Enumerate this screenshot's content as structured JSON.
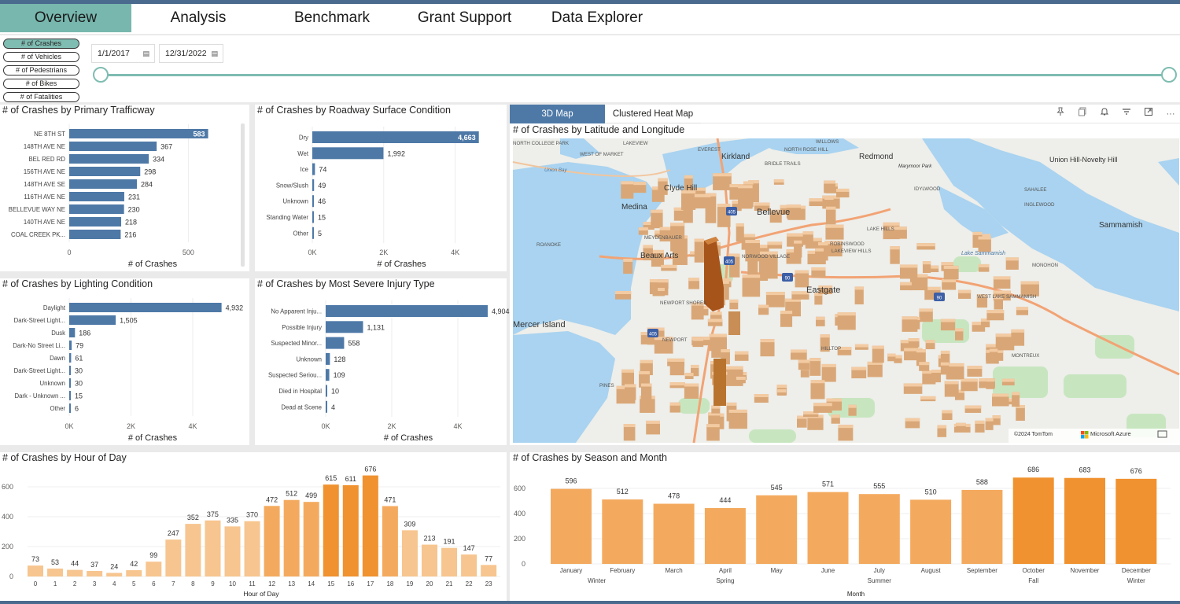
{
  "nav": {
    "tabs": [
      {
        "label": "Overview"
      },
      {
        "label": "Analysis"
      },
      {
        "label": "Benchmark"
      },
      {
        "label": "Grant Support"
      },
      {
        "label": "Data Explorer"
      }
    ]
  },
  "filters": {
    "metric_buttons": [
      "# of Crashes",
      "# of Vehicles",
      "# of Pedestrians",
      "# of Bikes",
      "# of Fatalities"
    ],
    "date_start": "1/1/2017",
    "date_end": "12/31/2022"
  },
  "colors": {
    "accent": "#77b7ae",
    "bar_blue": "#4e79a7",
    "orange_dark": "#f0922f",
    "orange_mid": "#f4aa5e",
    "orange_light": "#f7c58f"
  },
  "map": {
    "tabs": [
      "3D Map",
      "Clustered Heat Map"
    ],
    "title": "# of Crashes by Latitude and Longitude",
    "toolbar_icons": [
      "pin-icon",
      "copy-icon",
      "bell-icon",
      "filter-icon",
      "focus-icon",
      "more-icon"
    ],
    "labels": {
      "north_college_park": "NORTH COLLEGE PARK",
      "lakeview": "LAKEVIEW",
      "willows": "WILLOWS",
      "north_rose_hill": "NORTH ROSE HILL",
      "everest": "EVEREST",
      "redmond": "Redmond",
      "marymoor": "Marymoor Park",
      "union_hill": "Union Hill-Novelty Hill",
      "west_of_market": "WEST OF MARKET",
      "kirkland": "Kirkland",
      "idylwood": "IDYLWOOD",
      "lakeview_hills": "LAKEVIEW HILLS",
      "bridle_trails": "BRIDLE TRAILS",
      "union_bay": "Union Bay",
      "clyde_hill": "Clyde Hill",
      "bellevue": "Bellevue",
      "medina": "Medina",
      "sahalee": "SAHALEE",
      "inglewood": "INGLEWOOD",
      "meydenbauer": "MEYDENBAUER",
      "lake_hills": "LAKE HILLS",
      "sammamish": "Sammamish",
      "roanoke": "ROANOKE",
      "beaux_arts": "Beaux Arts",
      "norwood_village": "NORWOOD VILLAGE",
      "robinswood": "ROBINSWOOD",
      "lake_sammamish": "Lake Sammamish",
      "monohon": "MONOHON",
      "newport_shores": "NEWPORT SHORES",
      "eastgate": "Eastgate",
      "west_lake_sammamish": "WEST LAKE SAMMAMISH",
      "mercer_island": "Mercer Island",
      "newport": "NEWPORT",
      "hilltop": "HILLTOP",
      "montreux": "MONTREUX",
      "pines": "PINES",
      "highway_405": "405",
      "highway_90": "90",
      "copyright": "©2024 TomTom",
      "provider": "Microsoft Azure"
    }
  },
  "charts": {
    "trafficway": {
      "title": "# of Crashes by Primary Trafficway",
      "xlabel": "# of Crashes",
      "ticks": [
        "0",
        "500"
      ]
    },
    "surface": {
      "title": "# of Crashes by Roadway Surface Condition",
      "xlabel": "# of Crashes",
      "ticks": [
        "0K",
        "2K",
        "4K"
      ]
    },
    "lighting": {
      "title": "# of Crashes by Lighting Condition",
      "xlabel": "# of Crashes",
      "ticks": [
        "0K",
        "2K",
        "4K"
      ]
    },
    "injury": {
      "title": "# of Crashes by Most Severe Injury Type",
      "xlabel": "# of Crashes",
      "ticks": [
        "0K",
        "2K",
        "4K"
      ]
    },
    "hour": {
      "title": "# of Crashes by Hour of Day",
      "xlabel": "Hour of Day",
      "yticks": [
        "0",
        "200",
        "400",
        "600"
      ]
    },
    "season": {
      "title": "# of Crashes by Season and Month",
      "xlabel": "Month",
      "yticks": [
        "0",
        "200",
        "400",
        "600"
      ]
    }
  },
  "chart_data": [
    {
      "type": "bar",
      "orientation": "horizontal",
      "title": "# of Crashes by Primary Trafficway",
      "xlabel": "# of Crashes",
      "categories": [
        "NE 8TH ST",
        "148TH AVE NE",
        "BEL RED RD",
        "156TH AVE NE",
        "148TH AVE SE",
        "116TH AVE NE",
        "BELLEVUE WAY NE",
        "140TH AVE NE",
        "COAL CREEK PK..."
      ],
      "values": [
        583,
        367,
        334,
        298,
        284,
        231,
        230,
        218,
        216
      ],
      "xlim": [
        0,
        700
      ]
    },
    {
      "type": "bar",
      "orientation": "horizontal",
      "title": "# of Crashes by Roadway Surface Condition",
      "xlabel": "# of Crashes",
      "categories": [
        "Dry",
        "Wet",
        "Ice",
        "Snow/Slush",
        "Unknown",
        "Standing Water",
        "Other"
      ],
      "values": [
        4663,
        1992,
        74,
        49,
        46,
        15,
        5
      ],
      "labels": [
        "4,663",
        "1,992",
        "74",
        "49",
        "46",
        "15",
        "5"
      ],
      "xlim": [
        0,
        5000
      ]
    },
    {
      "type": "bar",
      "orientation": "horizontal",
      "title": "# of Crashes by Lighting Condition",
      "xlabel": "# of Crashes",
      "categories": [
        "Daylight",
        "Dark-Street Light...",
        "Dusk",
        "Dark-No Street Li...",
        "Dawn",
        "Dark-Street Light...",
        "Unknown",
        "Dark - Unknown ...",
        "Other"
      ],
      "values": [
        4932,
        1505,
        186,
        79,
        61,
        30,
        30,
        15,
        6
      ],
      "labels": [
        "4,932",
        "1,505",
        "186",
        "79",
        "61",
        "30",
        "30",
        "15",
        "6"
      ],
      "xlim": [
        0,
        5400
      ]
    },
    {
      "type": "bar",
      "orientation": "horizontal",
      "title": "# of Crashes by Most Severe Injury Type",
      "xlabel": "# of Crashes",
      "categories": [
        "No Apparent Inju...",
        "Possible Injury",
        "Suspected Minor...",
        "Unknown",
        "Suspected Seriou...",
        "Died in Hospital",
        "Dead at Scene"
      ],
      "values": [
        4904,
        1131,
        558,
        128,
        109,
        10,
        4
      ],
      "labels": [
        "4,904",
        "1,131",
        "558",
        "128",
        "109",
        "10",
        "4"
      ],
      "xlim": [
        0,
        5000
      ]
    },
    {
      "type": "bar",
      "title": "# of Crashes by Hour of Day",
      "xlabel": "Hour of Day",
      "categories": [
        "0",
        "1",
        "2",
        "3",
        "4",
        "5",
        "6",
        "7",
        "8",
        "9",
        "10",
        "11",
        "12",
        "13",
        "14",
        "15",
        "16",
        "17",
        "18",
        "19",
        "20",
        "21",
        "22",
        "23"
      ],
      "values": [
        73,
        53,
        44,
        37,
        24,
        42,
        99,
        247,
        352,
        375,
        335,
        370,
        472,
        512,
        499,
        615,
        611,
        676,
        471,
        309,
        213,
        191,
        147,
        77
      ],
      "ylim": [
        0,
        700
      ]
    },
    {
      "type": "bar",
      "title": "# of Crashes by Season and Month",
      "xlabel": "Month",
      "categories": [
        "January",
        "February",
        "March",
        "April",
        "May",
        "June",
        "July",
        "August",
        "September",
        "October",
        "November",
        "December"
      ],
      "seasons": [
        "Winter",
        "Spring",
        "Summer",
        "Fall",
        "Winter"
      ],
      "values": [
        596,
        512,
        478,
        444,
        545,
        571,
        555,
        510,
        588,
        686,
        683,
        676
      ],
      "ylim": [
        0,
        700
      ]
    }
  ]
}
